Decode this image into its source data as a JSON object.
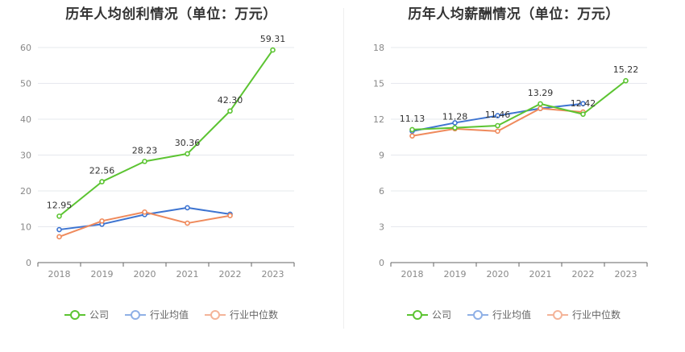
{
  "chart_data": [
    {
      "type": "line",
      "title": "历年人均创利情况（单位：万元）",
      "categories": [
        "2018",
        "2019",
        "2020",
        "2021",
        "2022",
        "2023"
      ],
      "ylim": [
        0,
        60
      ],
      "yticks": [
        0,
        10,
        20,
        30,
        40,
        50,
        60
      ],
      "grid": true,
      "legend_position": "bottom",
      "series": [
        {
          "name": "公司",
          "color": "#5cc432",
          "values": [
            12.95,
            22.56,
            28.23,
            30.36,
            42.3,
            59.31
          ],
          "labels": [
            "12.95",
            "22.56",
            "28.23",
            "30.36",
            "42.30",
            "59.31"
          ]
        },
        {
          "name": "行业均值",
          "color": "#3d74d1",
          "values": [
            9.2,
            10.7,
            13.4,
            15.3,
            13.5,
            null
          ],
          "labels": null
        },
        {
          "name": "行业中位数",
          "color": "#ef8a5c",
          "values": [
            7.2,
            11.6,
            14.1,
            11.0,
            13.1,
            null
          ],
          "labels": null
        }
      ]
    },
    {
      "type": "line",
      "title": "历年人均薪酬情况（单位：万元）",
      "categories": [
        "2018",
        "2019",
        "2020",
        "2021",
        "2022",
        "2023"
      ],
      "ylim": [
        0,
        18
      ],
      "yticks": [
        0,
        3,
        6,
        9,
        12,
        15,
        18
      ],
      "grid": true,
      "legend_position": "bottom",
      "series": [
        {
          "name": "公司",
          "color": "#5cc432",
          "values": [
            11.13,
            11.28,
            11.46,
            13.29,
            12.42,
            15.22
          ],
          "labels": [
            "11.13",
            "11.28",
            "11.46",
            "13.29",
            "12.42",
            "15.22"
          ]
        },
        {
          "name": "行业均值",
          "color": "#3d74d1",
          "values": [
            11.0,
            11.7,
            12.3,
            12.9,
            13.3,
            null
          ],
          "labels": null
        },
        {
          "name": "行业中位数",
          "color": "#ef8a5c",
          "values": [
            10.6,
            11.2,
            11.0,
            12.9,
            12.6,
            null
          ],
          "labels": null
        }
      ]
    }
  ],
  "legend": {
    "items": [
      {
        "name": "公司",
        "color": "#5cc432"
      },
      {
        "name": "行业均值",
        "color": "#8fb0e6"
      },
      {
        "name": "行业中位数",
        "color": "#f4b499"
      }
    ]
  }
}
